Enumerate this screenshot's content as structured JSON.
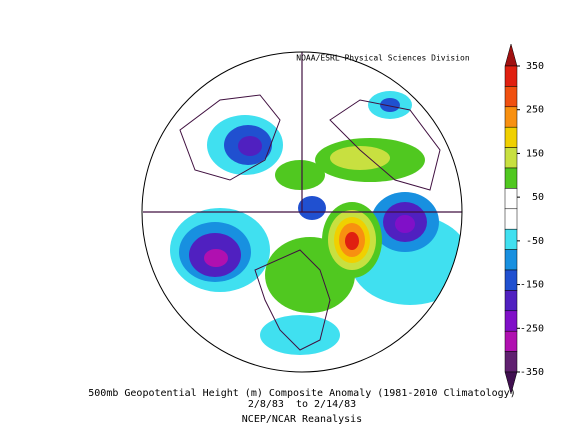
{
  "header": {
    "credit": "NOAA/ESRL Physical Sciences Division"
  },
  "colorbar": {
    "ticks": [
      350,
      250,
      150,
      50,
      -50,
      -150,
      -250,
      -350
    ],
    "colors": [
      "#a01010",
      "#e02010",
      "#f05010",
      "#f89010",
      "#f0d000",
      "#c8e040",
      "#50c820",
      "#ffffff",
      "#ffffff",
      "#40e0f0",
      "#1890e0",
      "#2050d0",
      "#5020c0",
      "#8010c8",
      "#b010b0",
      "#602070",
      "#401050"
    ]
  },
  "caption": {
    "line1": "500mb Geopotential Height (m) Composite Anomaly (1981-2010 Climatology)",
    "line2": "2/8/83  to 2/14/83",
    "line3": "NCEP/NCAR Reanalysis"
  }
}
